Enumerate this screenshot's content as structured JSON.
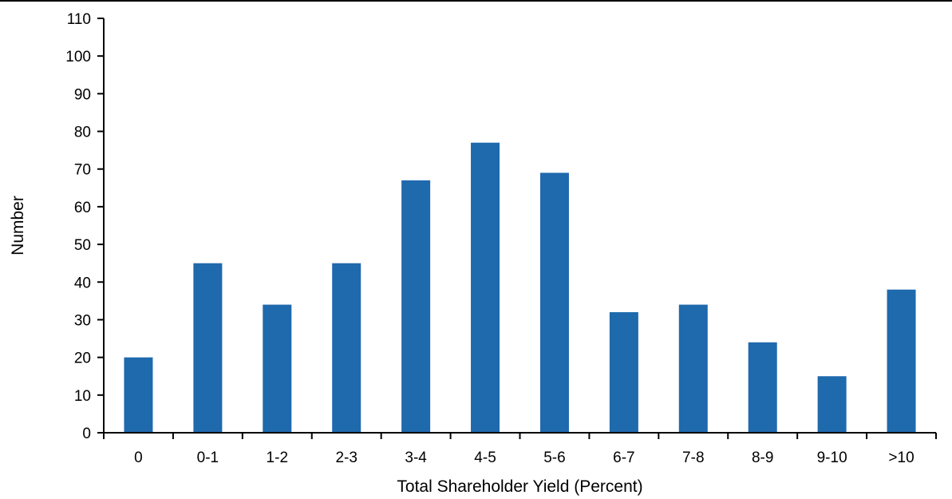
{
  "chart_data": {
    "type": "bar",
    "title": "",
    "xlabel": "Total Shareholder Yield (Percent)",
    "ylabel": "Number",
    "categories": [
      "0",
      "0-1",
      "1-2",
      "2-3",
      "3-4",
      "4-5",
      "5-6",
      "6-7",
      "7-8",
      "8-9",
      "9-10",
      ">10"
    ],
    "values": [
      20,
      45,
      34,
      45,
      67,
      77,
      69,
      32,
      34,
      24,
      15,
      38
    ],
    "ylim": [
      0,
      110
    ],
    "yticks": [
      0,
      10,
      20,
      30,
      40,
      50,
      60,
      70,
      80,
      90,
      100,
      110
    ],
    "grid": false,
    "legend": "none",
    "bar_color": "#1F69AD"
  }
}
